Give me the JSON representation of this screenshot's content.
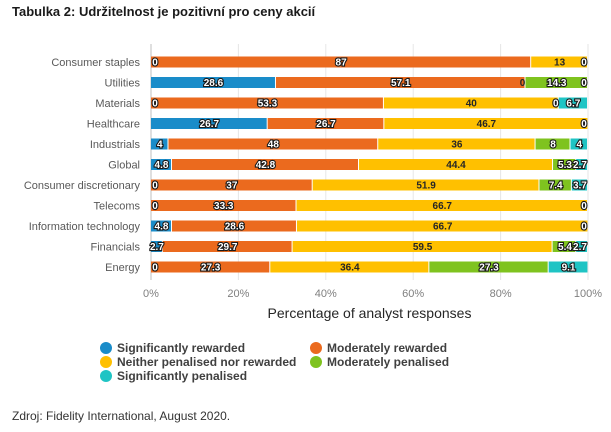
{
  "title": "Tabulka 2: Udržitelnost je pozitivní pro ceny akcií",
  "source": "Zdroj: Fidelity International, August 2020.",
  "chart_data": {
    "type": "bar",
    "orientation": "horizontal",
    "stacked": true,
    "title": "Tabulka 2: Udržitelnost je pozitivní pro ceny akcií",
    "xlabel": "Percentage of analyst responses",
    "ylabel": "",
    "xlim": [
      0,
      100
    ],
    "x_ticks": [
      "0%",
      "20%",
      "40%",
      "60%",
      "80%",
      "100%"
    ],
    "grid": true,
    "legend_position": "bottom",
    "categories": [
      "Consumer staples",
      "Utilities",
      "Materials",
      "Healthcare",
      "Industrials",
      "Global",
      "Consumer discretionary",
      "Telecoms",
      "Information technology",
      "Financials",
      "Energy"
    ],
    "series": [
      {
        "name": "Significantly rewarded",
        "color": "#1a8cc9",
        "values": [
          0,
          28.6,
          0,
          26.7,
          4,
          4.8,
          0,
          0,
          4.8,
          2.7,
          0
        ],
        "labels": [
          "0",
          "28.6",
          "0",
          "26.7",
          "4",
          "4.8",
          "0",
          "0",
          "4.8",
          "2.7",
          "0"
        ]
      },
      {
        "name": "Moderately rewarded",
        "color": "#eb6a1e",
        "values": [
          87,
          57.1,
          53.3,
          26.7,
          48,
          42.8,
          37,
          33.3,
          28.6,
          29.7,
          27.3
        ],
        "labels": [
          "87",
          "57.1",
          "53.3",
          "26.7",
          "48",
          "42.8",
          "37",
          "33.3",
          "28.6",
          "29.7",
          "27.3"
        ]
      },
      {
        "name": "Neither penalised nor rewarded",
        "color": "#ffc000",
        "values": [
          13,
          0,
          40,
          46.7,
          36,
          44.4,
          51.9,
          66.7,
          66.7,
          59.5,
          36.4
        ],
        "labels": [
          "13",
          "0",
          "40",
          "46.7",
          "36",
          "44.4",
          "51.9",
          "66.7",
          "66.7",
          "59.5",
          "36.4"
        ]
      },
      {
        "name": "Moderately penalised",
        "color": "#7fc31f",
        "values": [
          0,
          14.3,
          0,
          0,
          8,
          5.3,
          7.4,
          0,
          0,
          5.4,
          27.3
        ],
        "labels": [
          null,
          "14.3",
          "0",
          null,
          "8",
          "5.3",
          "7.4",
          null,
          null,
          "5.4",
          "27.3"
        ]
      },
      {
        "name": "Significantly penalised",
        "color": "#1fc4c4",
        "values": [
          0,
          0,
          6.7,
          0,
          4,
          2.7,
          3.7,
          0,
          0,
          2.7,
          9.1
        ],
        "labels": [
          "0",
          "0",
          "6.7",
          "0",
          "4",
          "2.7",
          "3.7",
          "0",
          "0",
          "2.7",
          "9.1"
        ]
      }
    ],
    "legend": [
      {
        "name": "Significantly rewarded",
        "color": "#1a8cc9"
      },
      {
        "name": "Moderately rewarded",
        "color": "#eb6a1e"
      },
      {
        "name": "Neither penalised nor rewarded",
        "color": "#ffc000"
      },
      {
        "name": "Moderately penalised",
        "color": "#7fc31f"
      },
      {
        "name": "Significantly penalised",
        "color": "#1fc4c4"
      }
    ]
  }
}
